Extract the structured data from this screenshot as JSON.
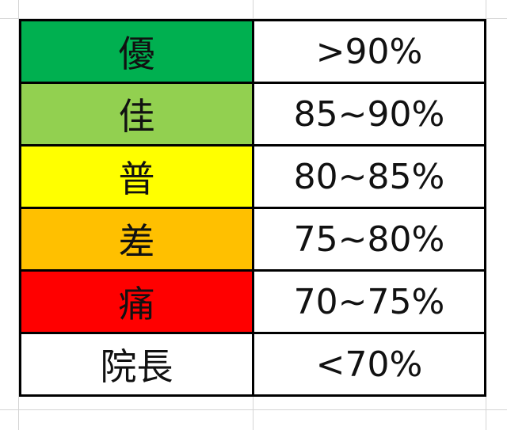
{
  "rows": [
    {
      "grade": "優",
      "range": ">90%",
      "color": "#00B050"
    },
    {
      "grade": "佳",
      "range": "85~90%",
      "color": "#92D050"
    },
    {
      "grade": "普",
      "range": "80~85%",
      "color": "#FFFF00"
    },
    {
      "grade": "差",
      "range": "75~80%",
      "color": "#FFC000"
    },
    {
      "grade": "痛",
      "range": "70~75%",
      "color": "#FF0000"
    },
    {
      "grade": "院長",
      "range": "<70%",
      "color": "#FFFFFF"
    }
  ]
}
